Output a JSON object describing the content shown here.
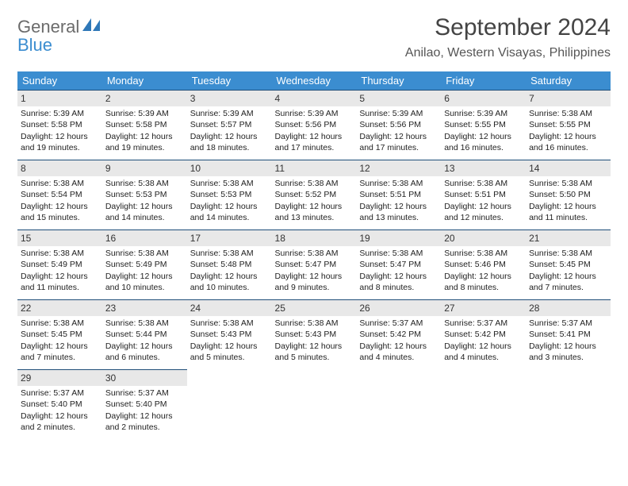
{
  "brand": {
    "line1": "General",
    "line2": "Blue"
  },
  "title": "September 2024",
  "location": "Anilao, Western Visayas, Philippines",
  "colors": {
    "header_bar": "#3b8dd0",
    "header_text": "#ffffff",
    "day_num_bg": "#e8e8e8",
    "row_border": "#1f4e79",
    "logo_gray": "#6b6b6b",
    "logo_blue": "#3b8dd0",
    "bg": "#ffffff"
  },
  "days_of_week": [
    "Sunday",
    "Monday",
    "Tuesday",
    "Wednesday",
    "Thursday",
    "Friday",
    "Saturday"
  ],
  "weeks": [
    [
      {
        "n": "1",
        "sunrise": "5:39 AM",
        "sunset": "5:58 PM",
        "daylight": "12 hours and 19 minutes."
      },
      {
        "n": "2",
        "sunrise": "5:39 AM",
        "sunset": "5:58 PM",
        "daylight": "12 hours and 19 minutes."
      },
      {
        "n": "3",
        "sunrise": "5:39 AM",
        "sunset": "5:57 PM",
        "daylight": "12 hours and 18 minutes."
      },
      {
        "n": "4",
        "sunrise": "5:39 AM",
        "sunset": "5:56 PM",
        "daylight": "12 hours and 17 minutes."
      },
      {
        "n": "5",
        "sunrise": "5:39 AM",
        "sunset": "5:56 PM",
        "daylight": "12 hours and 17 minutes."
      },
      {
        "n": "6",
        "sunrise": "5:39 AM",
        "sunset": "5:55 PM",
        "daylight": "12 hours and 16 minutes."
      },
      {
        "n": "7",
        "sunrise": "5:38 AM",
        "sunset": "5:55 PM",
        "daylight": "12 hours and 16 minutes."
      }
    ],
    [
      {
        "n": "8",
        "sunrise": "5:38 AM",
        "sunset": "5:54 PM",
        "daylight": "12 hours and 15 minutes."
      },
      {
        "n": "9",
        "sunrise": "5:38 AM",
        "sunset": "5:53 PM",
        "daylight": "12 hours and 14 minutes."
      },
      {
        "n": "10",
        "sunrise": "5:38 AM",
        "sunset": "5:53 PM",
        "daylight": "12 hours and 14 minutes."
      },
      {
        "n": "11",
        "sunrise": "5:38 AM",
        "sunset": "5:52 PM",
        "daylight": "12 hours and 13 minutes."
      },
      {
        "n": "12",
        "sunrise": "5:38 AM",
        "sunset": "5:51 PM",
        "daylight": "12 hours and 13 minutes."
      },
      {
        "n": "13",
        "sunrise": "5:38 AM",
        "sunset": "5:51 PM",
        "daylight": "12 hours and 12 minutes."
      },
      {
        "n": "14",
        "sunrise": "5:38 AM",
        "sunset": "5:50 PM",
        "daylight": "12 hours and 11 minutes."
      }
    ],
    [
      {
        "n": "15",
        "sunrise": "5:38 AM",
        "sunset": "5:49 PM",
        "daylight": "12 hours and 11 minutes."
      },
      {
        "n": "16",
        "sunrise": "5:38 AM",
        "sunset": "5:49 PM",
        "daylight": "12 hours and 10 minutes."
      },
      {
        "n": "17",
        "sunrise": "5:38 AM",
        "sunset": "5:48 PM",
        "daylight": "12 hours and 10 minutes."
      },
      {
        "n": "18",
        "sunrise": "5:38 AM",
        "sunset": "5:47 PM",
        "daylight": "12 hours and 9 minutes."
      },
      {
        "n": "19",
        "sunrise": "5:38 AM",
        "sunset": "5:47 PM",
        "daylight": "12 hours and 8 minutes."
      },
      {
        "n": "20",
        "sunrise": "5:38 AM",
        "sunset": "5:46 PM",
        "daylight": "12 hours and 8 minutes."
      },
      {
        "n": "21",
        "sunrise": "5:38 AM",
        "sunset": "5:45 PM",
        "daylight": "12 hours and 7 minutes."
      }
    ],
    [
      {
        "n": "22",
        "sunrise": "5:38 AM",
        "sunset": "5:45 PM",
        "daylight": "12 hours and 7 minutes."
      },
      {
        "n": "23",
        "sunrise": "5:38 AM",
        "sunset": "5:44 PM",
        "daylight": "12 hours and 6 minutes."
      },
      {
        "n": "24",
        "sunrise": "5:38 AM",
        "sunset": "5:43 PM",
        "daylight": "12 hours and 5 minutes."
      },
      {
        "n": "25",
        "sunrise": "5:38 AM",
        "sunset": "5:43 PM",
        "daylight": "12 hours and 5 minutes."
      },
      {
        "n": "26",
        "sunrise": "5:37 AM",
        "sunset": "5:42 PM",
        "daylight": "12 hours and 4 minutes."
      },
      {
        "n": "27",
        "sunrise": "5:37 AM",
        "sunset": "5:42 PM",
        "daylight": "12 hours and 4 minutes."
      },
      {
        "n": "28",
        "sunrise": "5:37 AM",
        "sunset": "5:41 PM",
        "daylight": "12 hours and 3 minutes."
      }
    ],
    [
      {
        "n": "29",
        "sunrise": "5:37 AM",
        "sunset": "5:40 PM",
        "daylight": "12 hours and 2 minutes."
      },
      {
        "n": "30",
        "sunrise": "5:37 AM",
        "sunset": "5:40 PM",
        "daylight": "12 hours and 2 minutes."
      },
      null,
      null,
      null,
      null,
      null
    ]
  ],
  "labels": {
    "sunrise": "Sunrise:",
    "sunset": "Sunset:",
    "daylight": "Daylight:"
  }
}
